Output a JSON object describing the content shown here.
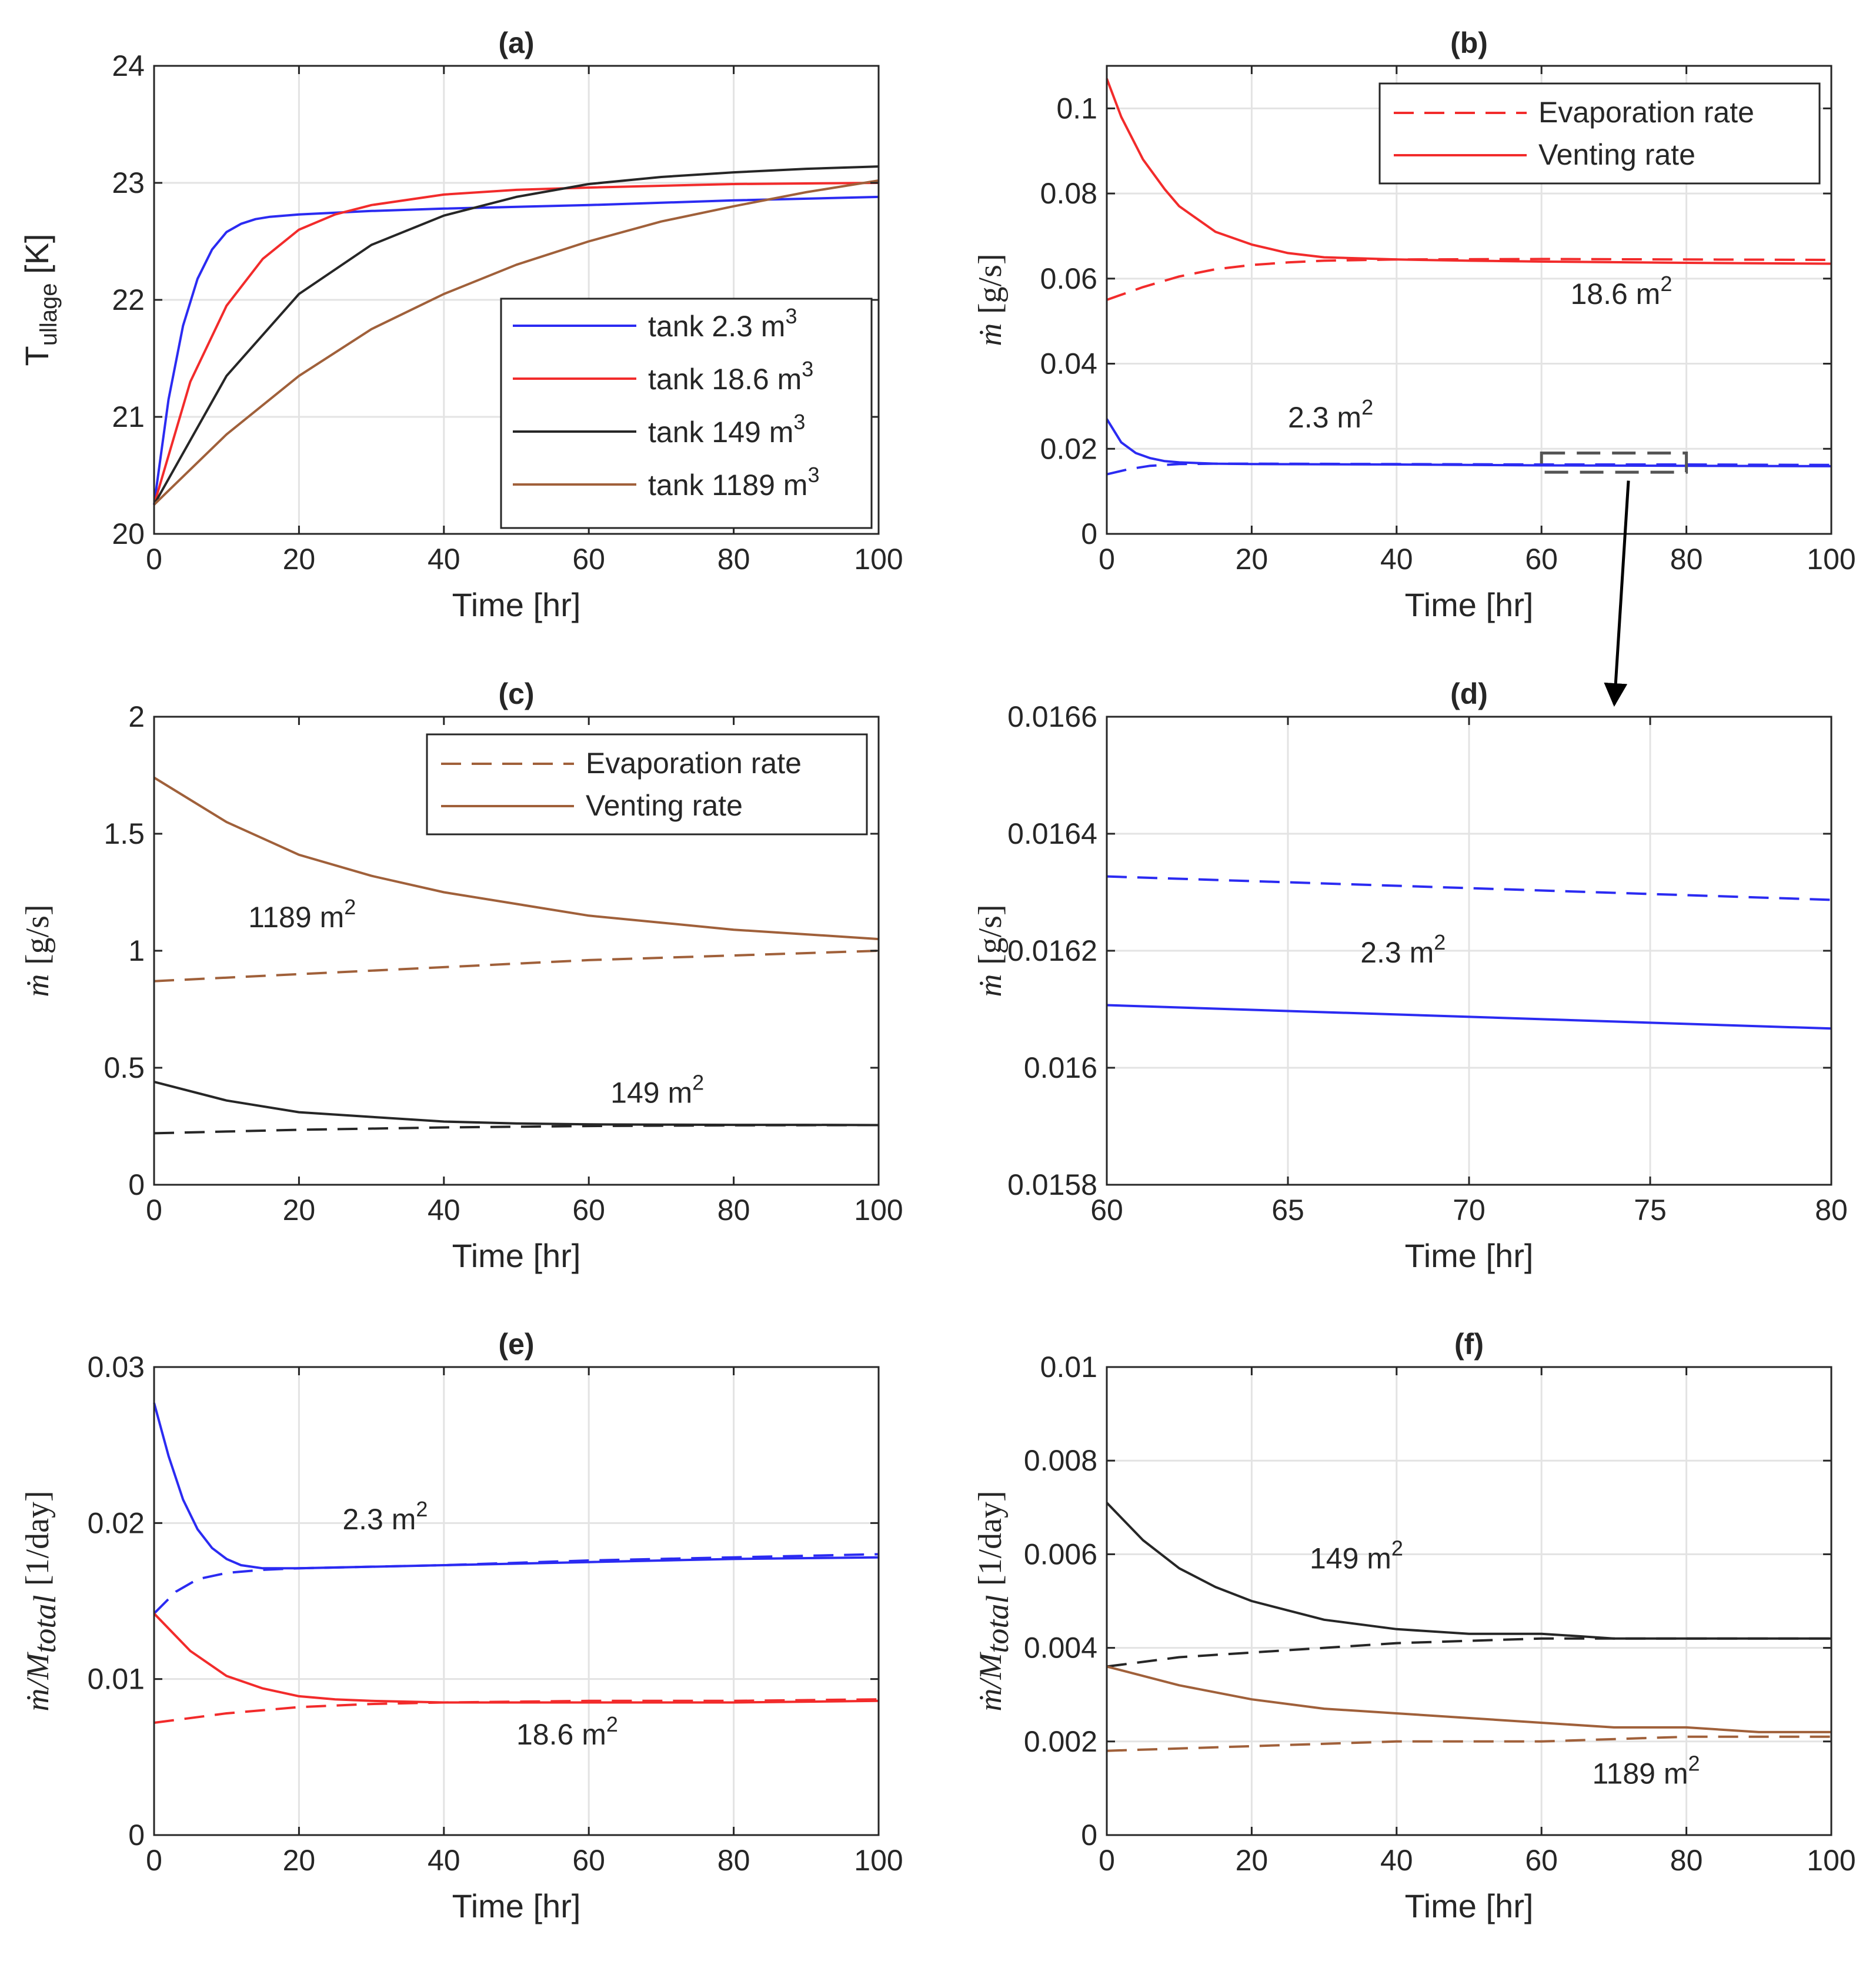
{
  "figure": {
    "colors": {
      "blue": "#2b2bf2",
      "red": "#f22b2b",
      "black": "#262626",
      "brown": "#a0603a",
      "grid": "#e3e3e3"
    }
  },
  "chart_data": [
    {
      "id": "a",
      "type": "line",
      "title": "(a)",
      "xlabel": "Time [hr]",
      "ylabel": "T",
      "ylabel_sub": "ullage",
      "ylabel_unit": "[K]",
      "xlim": [
        0,
        100
      ],
      "ylim": [
        20,
        24
      ],
      "xticks": [
        "0",
        "20",
        "40",
        "60",
        "80",
        "100"
      ],
      "yticks": [
        "20",
        "21",
        "22",
        "23",
        "24"
      ],
      "grid": true,
      "legend_position": "bottom-right",
      "series": [
        {
          "name": "tank 2.3 m",
          "sup": "3",
          "color": "blue",
          "dash": false,
          "x": [
            0,
            2,
            4,
            6,
            8,
            10,
            12,
            14,
            16,
            20,
            30,
            40,
            60,
            80,
            100
          ],
          "y": [
            20.25,
            21.15,
            21.78,
            22.18,
            22.43,
            22.58,
            22.65,
            22.69,
            22.71,
            22.73,
            22.76,
            22.78,
            22.81,
            22.85,
            22.88
          ]
        },
        {
          "name": "tank 18.6 m",
          "sup": "3",
          "color": "red",
          "dash": false,
          "x": [
            0,
            5,
            10,
            15,
            20,
            25,
            30,
            40,
            50,
            60,
            80,
            100
          ],
          "y": [
            20.25,
            21.3,
            21.95,
            22.35,
            22.6,
            22.73,
            22.81,
            22.9,
            22.94,
            22.96,
            22.99,
            23.0
          ]
        },
        {
          "name": "tank 149 m",
          "sup": "3",
          "color": "black",
          "dash": false,
          "x": [
            0,
            10,
            20,
            30,
            40,
            50,
            60,
            70,
            80,
            90,
            100
          ],
          "y": [
            20.25,
            21.35,
            22.05,
            22.47,
            22.72,
            22.88,
            22.99,
            23.05,
            23.09,
            23.12,
            23.14
          ]
        },
        {
          "name": "tank 1189 m",
          "sup": "3",
          "color": "brown",
          "dash": false,
          "x": [
            0,
            10,
            20,
            30,
            40,
            50,
            60,
            70,
            80,
            90,
            100
          ],
          "y": [
            20.25,
            20.85,
            21.35,
            21.75,
            22.05,
            22.3,
            22.5,
            22.67,
            22.8,
            22.92,
            23.02
          ]
        }
      ],
      "annotations": []
    },
    {
      "id": "b",
      "type": "line",
      "title": "(b)",
      "xlabel": "Time [hr]",
      "ylabel_math": "ṁ",
      "ylabel": "[g/s]",
      "xlim": [
        0,
        100
      ],
      "ylim": [
        0,
        0.11
      ],
      "xticks": [
        "0",
        "20",
        "40",
        "60",
        "80",
        "100"
      ],
      "yticks": [
        "0",
        "0.02",
        "0.04",
        "0.06",
        "0.08",
        "0.1"
      ],
      "ytick_values": [
        0,
        0.02,
        0.04,
        0.06,
        0.08,
        0.1
      ],
      "grid": true,
      "legend_position": "top-right",
      "legend": [
        {
          "name": "Evaporation rate",
          "color": "red",
          "dash": true
        },
        {
          "name": "Venting rate",
          "color": "red",
          "dash": false
        }
      ],
      "series": [
        {
          "color": "red",
          "dash": false,
          "x": [
            0,
            2,
            5,
            8,
            10,
            15,
            20,
            25,
            30,
            40,
            50,
            60,
            80,
            100
          ],
          "y": [
            0.107,
            0.098,
            0.088,
            0.081,
            0.077,
            0.071,
            0.068,
            0.066,
            0.065,
            0.0645,
            0.0642,
            0.064,
            0.0637,
            0.0635
          ]
        },
        {
          "color": "red",
          "dash": true,
          "x": [
            0,
            5,
            10,
            15,
            20,
            25,
            30,
            40,
            60,
            80,
            100
          ],
          "y": [
            0.055,
            0.058,
            0.0605,
            0.0622,
            0.0632,
            0.0638,
            0.0642,
            0.0645,
            0.0646,
            0.0645,
            0.0644
          ]
        },
        {
          "color": "blue",
          "dash": false,
          "x": [
            0,
            2,
            4,
            6,
            8,
            10,
            15,
            20,
            40,
            60,
            80,
            100
          ],
          "y": [
            0.027,
            0.0215,
            0.019,
            0.0178,
            0.0171,
            0.0168,
            0.0165,
            0.0164,
            0.0163,
            0.0161,
            0.016,
            0.0159
          ]
        },
        {
          "color": "blue",
          "dash": true,
          "x": [
            0,
            3,
            6,
            10,
            15,
            20,
            40,
            60,
            80,
            100
          ],
          "y": [
            0.014,
            0.0152,
            0.016,
            0.0164,
            0.0165,
            0.0165,
            0.0164,
            0.0163,
            0.0163,
            0.0162
          ]
        }
      ],
      "annotations": [
        {
          "text": "18.6 m",
          "sup": "2",
          "x": 64,
          "y": 0.054
        },
        {
          "text": "2.3 m",
          "sup": "2",
          "x": 25,
          "y": 0.025
        }
      ],
      "zoom_box": {
        "x": [
          60,
          80
        ],
        "y": [
          0.0145,
          0.019
        ]
      }
    },
    {
      "id": "c",
      "type": "line",
      "title": "(c)",
      "xlabel": "Time [hr]",
      "ylabel_math": "ṁ",
      "ylabel": "[g/s]",
      "xlim": [
        0,
        100
      ],
      "ylim": [
        0,
        2
      ],
      "xticks": [
        "0",
        "20",
        "40",
        "60",
        "80",
        "100"
      ],
      "yticks": [
        "0",
        "0.5",
        "1",
        "1.5",
        "2"
      ],
      "ytick_values": [
        0,
        0.5,
        1,
        1.5,
        2
      ],
      "grid": false,
      "legend_position": "top-right",
      "legend": [
        {
          "name": "Evaporation rate",
          "color": "brown",
          "dash": true
        },
        {
          "name": "Venting rate",
          "color": "brown",
          "dash": false
        }
      ],
      "series": [
        {
          "color": "brown",
          "dash": false,
          "x": [
            0,
            10,
            20,
            30,
            40,
            50,
            60,
            70,
            80,
            90,
            100
          ],
          "y": [
            1.74,
            1.55,
            1.41,
            1.32,
            1.25,
            1.2,
            1.15,
            1.12,
            1.09,
            1.07,
            1.05
          ]
        },
        {
          "color": "brown",
          "dash": true,
          "x": [
            0,
            20,
            40,
            60,
            80,
            100
          ],
          "y": [
            0.87,
            0.9,
            0.93,
            0.96,
            0.98,
            1.0
          ]
        },
        {
          "color": "black",
          "dash": false,
          "x": [
            0,
            10,
            20,
            30,
            40,
            50,
            60,
            70,
            80,
            90,
            100
          ],
          "y": [
            0.44,
            0.36,
            0.31,
            0.29,
            0.27,
            0.262,
            0.258,
            0.257,
            0.256,
            0.256,
            0.255
          ]
        },
        {
          "color": "black",
          "dash": true,
          "x": [
            0,
            20,
            40,
            60,
            80,
            100
          ],
          "y": [
            0.22,
            0.235,
            0.245,
            0.251,
            0.254,
            0.255
          ]
        }
      ],
      "annotations": [
        {
          "text": "1189 m",
          "sup": "2",
          "x": 13,
          "y": 1.1
        },
        {
          "text": "149 m",
          "sup": "2",
          "x": 63,
          "y": 0.35
        }
      ]
    },
    {
      "id": "d",
      "type": "line",
      "title": "(d)",
      "xlabel": "Time [hr]",
      "ylabel_math": "ṁ",
      "ylabel": "[g/s]",
      "xlim": [
        60,
        80
      ],
      "ylim": [
        0.0158,
        0.0166
      ],
      "xticks": [
        "60",
        "65",
        "70",
        "75",
        "80"
      ],
      "yticks": [
        "0.0158",
        "0.016",
        "0.0162",
        "0.0164",
        "0.0166"
      ],
      "ytick_values": [
        0.0158,
        0.016,
        0.0162,
        0.0164,
        0.0166
      ],
      "grid": true,
      "series": [
        {
          "color": "blue",
          "dash": true,
          "x": [
            60,
            80
          ],
          "y": [
            0.016327,
            0.016287
          ]
        },
        {
          "color": "blue",
          "dash": false,
          "x": [
            60,
            80
          ],
          "y": [
            0.016107,
            0.016067
          ]
        }
      ],
      "annotations": [
        {
          "text": "2.3 m",
          "sup": "2",
          "x": 67,
          "y": 0.01618
        }
      ]
    },
    {
      "id": "e",
      "type": "line",
      "title": "(e)",
      "xlabel": "Time [hr]",
      "ylabel_math": "ṁ/M",
      "ylabel_math_sub": "total",
      "ylabel": "[1/day]",
      "xlim": [
        0,
        100
      ],
      "ylim": [
        0,
        0.03
      ],
      "xticks": [
        "0",
        "20",
        "40",
        "60",
        "80",
        "100"
      ],
      "yticks": [
        "0",
        "0.01",
        "0.02",
        "0.03"
      ],
      "ytick_values": [
        0,
        0.01,
        0.02,
        0.03
      ],
      "grid": true,
      "series": [
        {
          "color": "blue",
          "dash": false,
          "x": [
            0,
            2,
            4,
            6,
            8,
            10,
            12,
            15,
            20,
            40,
            60,
            80,
            100
          ],
          "y": [
            0.0277,
            0.0243,
            0.0215,
            0.0196,
            0.0184,
            0.0177,
            0.0173,
            0.0171,
            0.0171,
            0.0173,
            0.0175,
            0.0177,
            0.0178
          ]
        },
        {
          "color": "blue",
          "dash": true,
          "x": [
            0,
            3,
            6,
            10,
            15,
            20,
            40,
            60,
            80,
            100
          ],
          "y": [
            0.0142,
            0.0156,
            0.0164,
            0.0168,
            0.017,
            0.0171,
            0.0173,
            0.0176,
            0.0178,
            0.018
          ]
        },
        {
          "color": "red",
          "dash": false,
          "x": [
            0,
            5,
            10,
            15,
            20,
            25,
            30,
            40,
            60,
            80,
            100
          ],
          "y": [
            0.0142,
            0.0118,
            0.0102,
            0.0094,
            0.0089,
            0.0087,
            0.0086,
            0.0085,
            0.0085,
            0.0085,
            0.0086
          ]
        },
        {
          "color": "red",
          "dash": true,
          "x": [
            0,
            10,
            20,
            30,
            40,
            60,
            80,
            100
          ],
          "y": [
            0.0072,
            0.0078,
            0.0082,
            0.0084,
            0.0085,
            0.0086,
            0.0086,
            0.0087
          ]
        }
      ],
      "annotations": [
        {
          "text": "2.3 m",
          "sup": "2",
          "x": 26,
          "y": 0.0196
        },
        {
          "text": "18.6 m",
          "sup": "2",
          "x": 50,
          "y": 0.0058
        }
      ]
    },
    {
      "id": "f",
      "type": "line",
      "title": "(f)",
      "xlabel": "Time [hr]",
      "ylabel_math": "ṁ/M",
      "ylabel_math_sub": "total",
      "ylabel": "[1/day]",
      "xlim": [
        0,
        100
      ],
      "ylim": [
        0,
        0.01
      ],
      "xticks": [
        "0",
        "20",
        "40",
        "60",
        "80",
        "100"
      ],
      "yticks": [
        "0",
        "0.002",
        "0.004",
        "0.006",
        "0.008",
        "0.01"
      ],
      "ytick_values": [
        0,
        0.002,
        0.004,
        0.006,
        0.008,
        0.01
      ],
      "grid": true,
      "series": [
        {
          "color": "black",
          "dash": false,
          "x": [
            0,
            5,
            10,
            15,
            20,
            30,
            40,
            50,
            60,
            70,
            80,
            90,
            100
          ],
          "y": [
            0.0071,
            0.0063,
            0.0057,
            0.0053,
            0.005,
            0.0046,
            0.0044,
            0.0043,
            0.0043,
            0.0042,
            0.0042,
            0.0042,
            0.0042
          ]
        },
        {
          "color": "black",
          "dash": true,
          "x": [
            0,
            10,
            20,
            30,
            40,
            60,
            80,
            100
          ],
          "y": [
            0.0036,
            0.0038,
            0.0039,
            0.004,
            0.0041,
            0.0042,
            0.0042,
            0.0042
          ]
        },
        {
          "color": "brown",
          "dash": false,
          "x": [
            0,
            10,
            20,
            30,
            40,
            50,
            60,
            70,
            80,
            90,
            100
          ],
          "y": [
            0.0036,
            0.0032,
            0.0029,
            0.0027,
            0.0026,
            0.0025,
            0.0024,
            0.0023,
            0.0023,
            0.0022,
            0.0022
          ]
        },
        {
          "color": "brown",
          "dash": true,
          "x": [
            0,
            20,
            40,
            60,
            80,
            100
          ],
          "y": [
            0.0018,
            0.0019,
            0.002,
            0.002,
            0.0021,
            0.0021
          ]
        }
      ],
      "annotations": [
        {
          "text": "149 m",
          "sup": "2",
          "x": 28,
          "y": 0.0057
        },
        {
          "text": "1189 m",
          "sup": "2",
          "x": 67,
          "y": 0.0011
        }
      ]
    }
  ]
}
